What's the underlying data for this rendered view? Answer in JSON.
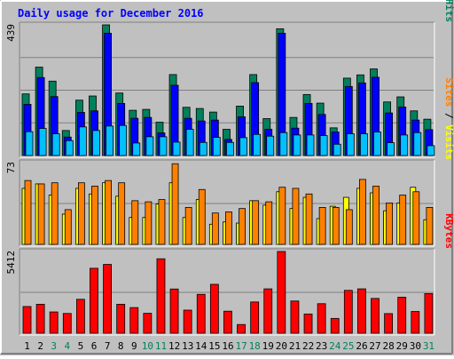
{
  "chart_data": {
    "type": "bar",
    "title": "Daily usage for December 2016",
    "categories": [
      "1",
      "2",
      "3",
      "4",
      "5",
      "6",
      "7",
      "8",
      "9",
      "10",
      "11",
      "12",
      "13",
      "14",
      "15",
      "16",
      "17",
      "18",
      "19",
      "20",
      "21",
      "22",
      "23",
      "24",
      "25",
      "26",
      "27",
      "28",
      "29",
      "30",
      "31"
    ],
    "weekend_days": [
      "3",
      "4",
      "10",
      "11",
      "17",
      "18",
      "24",
      "25",
      "31"
    ],
    "colors": {
      "hits": "#00805C",
      "files": "#0000FF",
      "pages": "#00C0FF",
      "visits": "#FFFF00",
      "sites": "#FF8000",
      "kbytes": "#FF0000",
      "weekday_label": "#000000",
      "weekend_label": "#00805C",
      "title": "#0000FF",
      "background": "#C0C0C0"
    },
    "panels": [
      {
        "ylim": [
          0,
          439
        ],
        "ymax_label": "439",
        "legend": [
          {
            "text": "Hits",
            "color": "#00805C"
          },
          {
            "text": "Files",
            "color": "#0000FF"
          },
          {
            "text": "Pages",
            "color": "#00C0FF"
          }
        ],
        "series": [
          {
            "name": "Hits",
            "color": "#00805C",
            "values": [
              207,
              297,
              250,
              84,
              186,
              200,
              439,
              210,
              152,
              155,
              112,
              272,
              162,
              158,
              146,
              88,
              166,
              272,
              124,
              426,
              128,
              205,
              176,
              93,
              260,
              271,
              291,
              180,
              197,
              150,
              122
            ]
          },
          {
            "name": "Files",
            "color": "#0000FF",
            "values": [
              172,
              262,
              198,
              62,
              145,
              150,
              411,
              175,
              125,
              128,
              76,
              236,
              125,
              116,
              119,
              54,
              130,
              245,
              88,
              411,
              92,
              175,
              138,
              79,
              232,
              244,
              263,
              143,
              163,
              119,
              87
            ]
          },
          {
            "name": "Pages",
            "color": "#00C0FF",
            "values": [
              80,
              91,
              73,
              50,
              96,
              84,
              99,
              101,
              42,
              63,
              63,
              45,
              88,
              44,
              61,
              44,
              60,
              71,
              65,
              77,
              69,
              69,
              67,
              38,
              73,
              73,
              79,
              43,
              69,
              77,
              33
            ]
          }
        ]
      },
      {
        "ylim": [
          0,
          73
        ],
        "ymax_label": "73",
        "legend": [
          {
            "text": "Visits",
            "color": "#FFFF00"
          },
          {
            "text": "Sites",
            "color": "#FF8000"
          }
        ],
        "series": [
          {
            "name": "Visits",
            "color": "#FFFF00",
            "values": [
              50,
              54,
              44,
              27,
              50,
              45,
              55,
              43,
              24,
              24,
              36,
              55,
              24,
              40,
              18,
              20,
              19,
              39,
              35,
              47,
              32,
              42,
              23,
              34,
              42,
              50,
              46,
              30,
              37,
              51,
              22
            ]
          },
          {
            "name": "Sites",
            "color": "#FF8000",
            "values": [
              57,
              54,
              55,
              31,
              55,
              52,
              57,
              55,
              39,
              38,
              40,
              72,
              33,
              49,
              28,
              29,
              32,
              39,
              38,
              51,
              50,
              45,
              33,
              33,
              31,
              58,
              52,
              37,
              44,
              47,
              33
            ]
          }
        ]
      },
      {
        "ylim": [
          0,
          5412
        ],
        "ymax_label": "5412",
        "legend": [
          {
            "text": "KBytes",
            "color": "#FF0000"
          }
        ],
        "series": [
          {
            "name": "KBytes",
            "color": "#FF0000",
            "values": [
              1768,
              1919,
              1409,
              1308,
              2245,
              4300,
              4556,
              1919,
              1698,
              1318,
              4929,
              2928,
              1529,
              2574,
              3237,
              1459,
              577,
              2069,
              2937,
              5412,
              2133,
              1273,
              1955,
              980,
              2838,
              2938,
              2303,
              1298,
              2383,
              1439,
              2623
            ]
          }
        ]
      }
    ]
  }
}
